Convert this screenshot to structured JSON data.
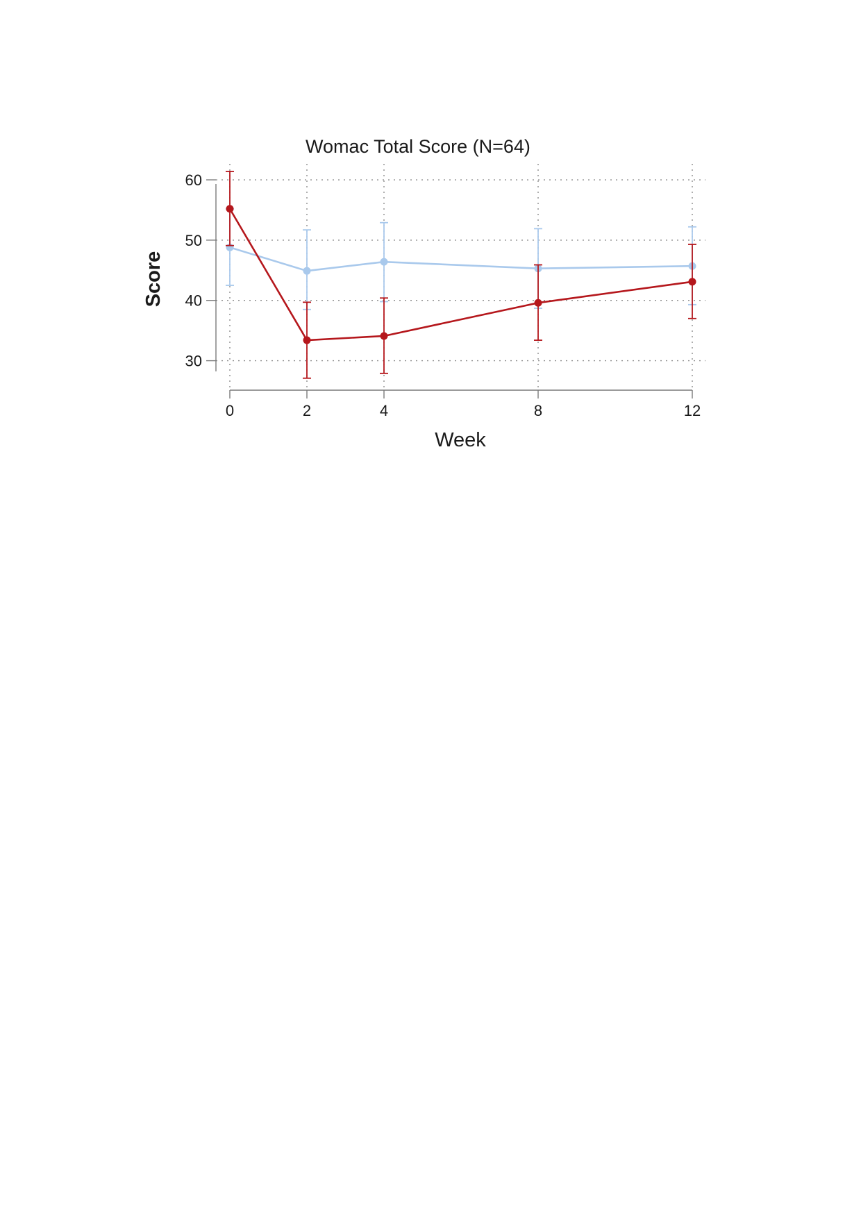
{
  "chart_data": {
    "type": "line",
    "title": "Womac Total Score (N=64)",
    "xlabel": "Week",
    "ylabel": "Score",
    "x": [
      0,
      2,
      4,
      8,
      12
    ],
    "x_ticks": [
      "0",
      "2",
      "4",
      "8",
      "12"
    ],
    "y_ticks": [
      "30",
      "40",
      "50",
      "60"
    ],
    "xlim": [
      0,
      12
    ],
    "ylim": [
      25,
      63
    ],
    "grid": true,
    "series": [
      {
        "color": "#a9c9ec",
        "values": [
          48.8,
          44.9,
          46.4,
          45.3,
          45.7
        ],
        "err_low": [
          42.5,
          38.5,
          39.8,
          38.7,
          39.3
        ],
        "err_high": [
          55.2,
          51.7,
          52.9,
          51.9,
          52.2
        ]
      },
      {
        "color": "#b5171c",
        "values": [
          55.2,
          33.4,
          34.1,
          39.6,
          43.1
        ],
        "err_low": [
          49.1,
          27.1,
          27.9,
          33.4,
          37.0
        ],
        "err_high": [
          61.4,
          39.7,
          40.4,
          45.9,
          49.3
        ]
      }
    ]
  }
}
